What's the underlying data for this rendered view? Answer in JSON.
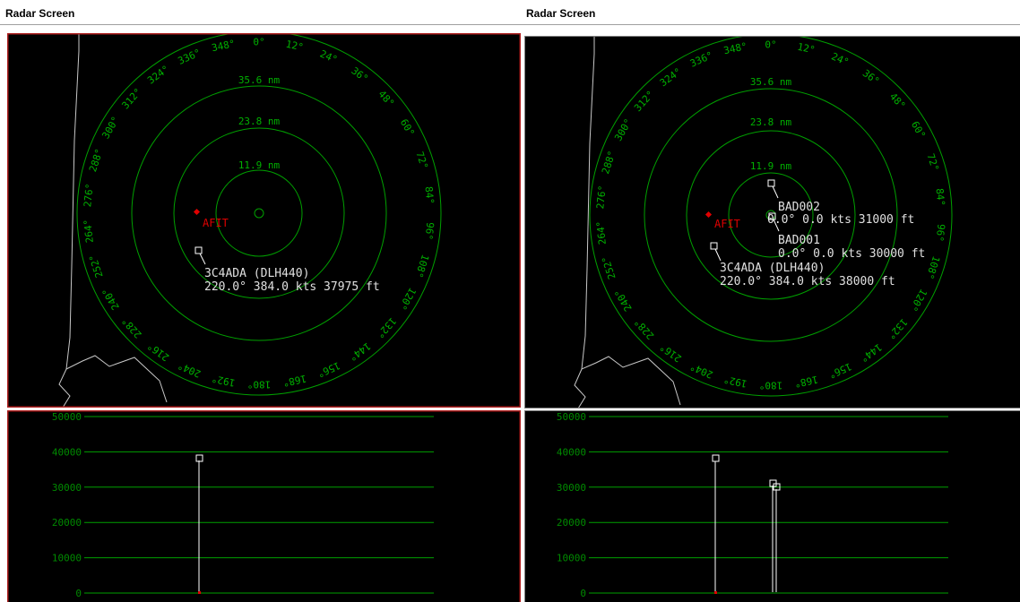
{
  "window_title": "Radar Screen",
  "colors": {
    "background": "#000000",
    "range_ring": "#00a000",
    "ring_label": "#00b000",
    "altitude_grid": "#00a000",
    "altitude_label": "#008a00",
    "coastline": "#c8c8c8",
    "target": "#ffffff",
    "target_label": "#e0e0e0",
    "station": "#e00000",
    "active_border": "#b02020",
    "inactive_border": "#808080"
  },
  "range_rings": [
    {
      "label": "11.9 nm"
    },
    {
      "label": "23.8 nm"
    },
    {
      "label": "35.6 nm"
    }
  ],
  "bearing_labels": [
    "0°",
    "12°",
    "24°",
    "36°",
    "48°",
    "60°",
    "72°",
    "84°",
    "96°",
    "108°",
    "120°",
    "132°",
    "144°",
    "156°",
    "168°",
    "180°",
    "192°",
    "204°",
    "216°",
    "228°",
    "240°",
    "252°",
    "264°",
    "276°",
    "288°",
    "300°",
    "312°",
    "324°",
    "336°",
    "348°"
  ],
  "station": {
    "label": "AFIT"
  },
  "altitude_axis": {
    "ticks": [
      "50000",
      "40000",
      "30000",
      "20000",
      "10000",
      "0"
    ],
    "max": 50000
  },
  "panels": [
    {
      "title": "Radar Screen",
      "targets": [
        {
          "line1": "3C4ADA (DLH440)",
          "line2": "220.0° 384.0 kts 37975 ft",
          "altitude": 37975
        }
      ]
    },
    {
      "title": "Radar Screen",
      "targets": [
        {
          "line1": "BAD002",
          "line2": "0.0° 0.0 kts 31000 ft",
          "altitude": 31000
        },
        {
          "line1": "BAD001",
          "line2": "0.0° 0.0 kts 30000 ft",
          "altitude": 30000
        },
        {
          "line1": "3C4ADA (DLH440)",
          "line2": "220.0° 384.0 kts 38000 ft",
          "altitude": 38000
        }
      ]
    }
  ]
}
